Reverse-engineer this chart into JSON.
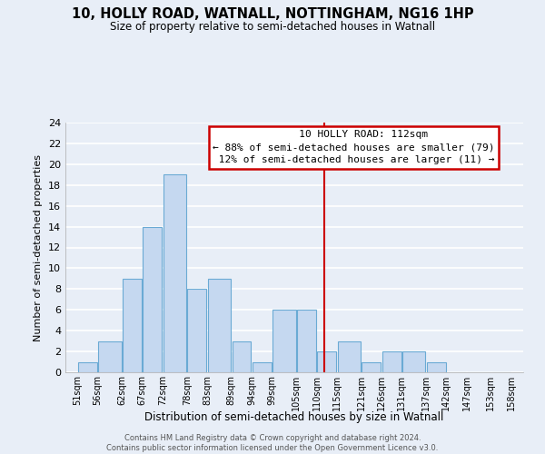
{
  "title": "10, HOLLY ROAD, WATNALL, NOTTINGHAM, NG16 1HP",
  "subtitle": "Size of property relative to semi-detached houses in Watnall",
  "xlabel": "Distribution of semi-detached houses by size in Watnall",
  "ylabel": "Number of semi-detached properties",
  "bin_edges": [
    51,
    56,
    62,
    67,
    72,
    78,
    83,
    89,
    94,
    99,
    105,
    110,
    115,
    121,
    126,
    131,
    137,
    142,
    147,
    153,
    158
  ],
  "counts": [
    1,
    3,
    9,
    14,
    19,
    8,
    9,
    3,
    1,
    6,
    6,
    2,
    3,
    1,
    2,
    2,
    1,
    0,
    0,
    0
  ],
  "bar_color": "#c5d8f0",
  "bar_edge_color": "#6aaad4",
  "vline_x": 112,
  "vline_color": "#cc0000",
  "ylim": [
    0,
    24
  ],
  "yticks": [
    0,
    2,
    4,
    6,
    8,
    10,
    12,
    14,
    16,
    18,
    20,
    22,
    24
  ],
  "annotation_title": "10 HOLLY ROAD: 112sqm",
  "annotation_line1": "← 88% of semi-detached houses are smaller (79)",
  "annotation_line2": " 12% of semi-detached houses are larger (11) →",
  "annotation_box_color": "#ffffff",
  "annotation_box_edge": "#cc0000",
  "footer_line1": "Contains HM Land Registry data © Crown copyright and database right 2024.",
  "footer_line2": "Contains public sector information licensed under the Open Government Licence v3.0.",
  "tick_labels": [
    "51sqm",
    "56sqm",
    "62sqm",
    "67sqm",
    "72sqm",
    "78sqm",
    "83sqm",
    "89sqm",
    "94sqm",
    "99sqm",
    "105sqm",
    "110sqm",
    "115sqm",
    "121sqm",
    "126sqm",
    "131sqm",
    "137sqm",
    "142sqm",
    "147sqm",
    "153sqm",
    "158sqm"
  ],
  "background_color": "#e8eef7",
  "grid_color": "#ffffff"
}
